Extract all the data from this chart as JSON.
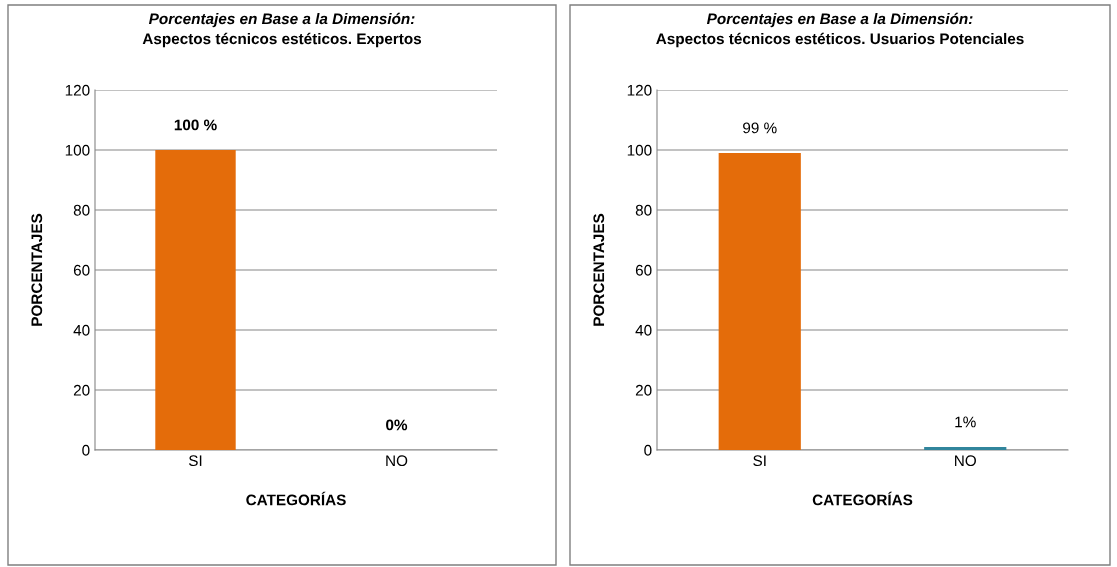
{
  "chart_data": [
    {
      "type": "bar",
      "title": "Porcentajes en Base a la Dimensión:",
      "subtitle": "Aspectos técnicos estéticos. Expertos",
      "xlabel": "CATEGORÍAS",
      "ylabel": "PORCENTAJES",
      "categories": [
        "SI",
        "NO"
      ],
      "values": [
        100,
        0
      ],
      "colors": [
        "#e46c0a",
        "#31859c"
      ],
      "value_labels": [
        "100 %",
        "0%"
      ],
      "ylim": [
        0,
        120
      ],
      "yticks": [
        0,
        20,
        40,
        60,
        80,
        100,
        120
      ],
      "grid": "y",
      "legend": false
    },
    {
      "type": "bar",
      "title": "Porcentajes en Base a la Dimensión:",
      "subtitle": "Aspectos técnicos estéticos. Usuarios Potenciales",
      "xlabel": "CATEGORÍAS",
      "ylabel": "PORCENTAJES",
      "categories": [
        "SI",
        "NO"
      ],
      "values": [
        99,
        1
      ],
      "colors": [
        "#e46c0a",
        "#31859c"
      ],
      "value_labels": [
        "99 %",
        "1%"
      ],
      "ylim": [
        0,
        120
      ],
      "yticks": [
        0,
        20,
        40,
        60,
        80,
        100,
        120
      ],
      "grid": "y",
      "legend": false
    }
  ]
}
